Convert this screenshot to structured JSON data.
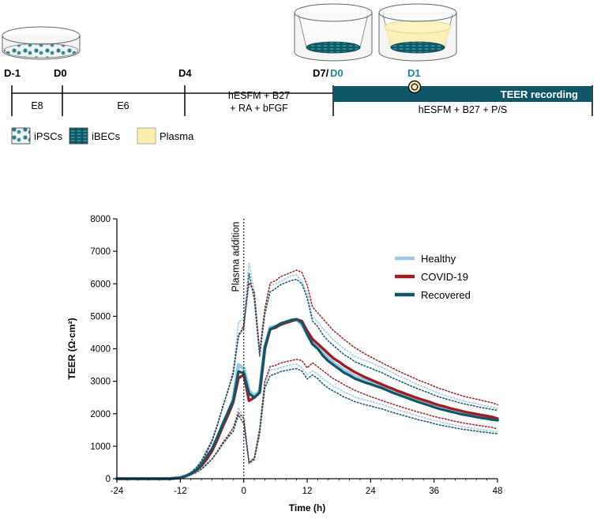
{
  "timeline": {
    "day_labels": [
      "D-1",
      "D0",
      "D4",
      "D7/"
    ],
    "d0_teer": "D0",
    "d1": "D1",
    "stage_labels": [
      "E8",
      "E6"
    ],
    "medium_stage3": [
      "hESFM + B27",
      "+ RA + bFGF"
    ],
    "teer_bar": "TEER recording",
    "medium_stage4": "hESFM + B27 + P/S",
    "accent_color": "#0f5767",
    "teal_text": "#1b8a9a",
    "plasma_color": "#fbeeb0"
  },
  "legend_key": {
    "items": [
      "iPSCs",
      "iBECs",
      "Plasma"
    ]
  },
  "chart_data": {
    "type": "line",
    "xlabel": "Time (h)",
    "ylabel": "TEER (Ω·cm²)",
    "xlim": [
      -24,
      48
    ],
    "ylim": [
      0,
      8000
    ],
    "xticks": [
      "-24",
      "-12",
      "0",
      "12",
      "24",
      "36",
      "48"
    ],
    "yticks": [
      "0",
      "1000",
      "2000",
      "3000",
      "4000",
      "5000",
      "6000",
      "7000",
      "8000"
    ],
    "annotation": "Plasma addition",
    "annotation_x": 0,
    "x": [
      -24,
      -22,
      -20,
      -18,
      -16,
      -14,
      -12,
      -11,
      -10,
      -9,
      -8,
      -7,
      -6,
      -5,
      -4,
      -3,
      -2,
      -1,
      0,
      1,
      2,
      3,
      4,
      5,
      6,
      7,
      8,
      9,
      10,
      11,
      12,
      13,
      14,
      15,
      16,
      17,
      18,
      19,
      20,
      21,
      22,
      23,
      24,
      25,
      26,
      27,
      28,
      29,
      30,
      31,
      32,
      33,
      34,
      35,
      36,
      37,
      38,
      39,
      40,
      41,
      42,
      43,
      44,
      45,
      46,
      47,
      48
    ],
    "series": [
      {
        "name": "Healthy",
        "color": "#9cc8e6",
        "values": [
          0,
          0,
          0,
          0,
          0,
          0,
          30,
          80,
          150,
          250,
          420,
          650,
          900,
          1250,
          1650,
          2000,
          2450,
          3500,
          3400,
          2700,
          2550,
          2700,
          4050,
          4650,
          4680,
          4750,
          4820,
          4880,
          4900,
          4750,
          4450,
          4150,
          4020,
          3850,
          3700,
          3550,
          3450,
          3330,
          3250,
          3140,
          3080,
          3030,
          2980,
          2920,
          2870,
          2800,
          2730,
          2660,
          2600,
          2540,
          2470,
          2410,
          2360,
          2300,
          2240,
          2190,
          2140,
          2100,
          2060,
          2020,
          1980,
          1950,
          1920,
          1890,
          1860,
          1830,
          1810
        ]
      },
      {
        "name": "COVID-19",
        "color": "#a01d22",
        "values": [
          0,
          0,
          0,
          0,
          0,
          0,
          30,
          80,
          150,
          250,
          400,
          600,
          850,
          1200,
          1600,
          1950,
          2350,
          3100,
          3200,
          2400,
          2500,
          2650,
          4000,
          4600,
          4650,
          4750,
          4800,
          4850,
          4900,
          4850,
          4550,
          4300,
          4150,
          4000,
          3850,
          3700,
          3600,
          3480,
          3380,
          3280,
          3200,
          3120,
          3050,
          2980,
          2910,
          2840,
          2780,
          2710,
          2650,
          2590,
          2530,
          2470,
          2420,
          2370,
          2310,
          2260,
          2220,
          2170,
          2130,
          2090,
          2050,
          2020,
          1990,
          1960,
          1930,
          1900,
          1850
        ]
      },
      {
        "name": "Recovered",
        "color": "#0f5767",
        "values": [
          0,
          0,
          0,
          0,
          0,
          0,
          30,
          80,
          160,
          270,
          440,
          680,
          920,
          1280,
          1680,
          2050,
          2400,
          3300,
          3250,
          2620,
          2500,
          2650,
          4050,
          4600,
          4680,
          4780,
          4830,
          4880,
          4910,
          4800,
          4450,
          4150,
          4000,
          3780,
          3620,
          3500,
          3380,
          3260,
          3180,
          3080,
          3020,
          2960,
          2910,
          2850,
          2800,
          2730,
          2660,
          2600,
          2540,
          2480,
          2420,
          2360,
          2310,
          2260,
          2200,
          2150,
          2110,
          2070,
          2030,
          1990,
          1960,
          1930,
          1900,
          1870,
          1850,
          1820,
          1800
        ]
      }
    ]
  }
}
